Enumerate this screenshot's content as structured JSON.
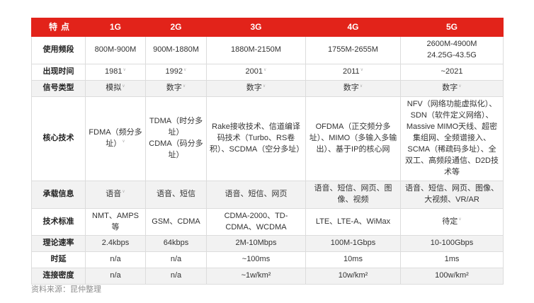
{
  "source_note": "资料来源：昆仲整理",
  "colors": {
    "accent": "#e2231a",
    "row_shade": "#f2f2f2",
    "border": "#dcdcdc",
    "header_text": "#ffffff"
  },
  "chart_data": {
    "type": "table",
    "title": "",
    "legend_position": "none",
    "grid": true,
    "columns": [
      "特点",
      "1G",
      "2G",
      "3G",
      "4G",
      "5G"
    ],
    "rows": [
      {
        "label": "使用频段",
        "cells": [
          "800M-900M",
          "900M-1880M",
          "1880M-2150M",
          "1755M-2655M",
          "2600M-4900M\n24.25G-43.5G"
        ],
        "shade": false,
        "marks": [
          false,
          false,
          false,
          false,
          false
        ]
      },
      {
        "label": "出现时间",
        "cells": [
          "1981",
          "1992",
          "2001",
          "2011",
          "~2021"
        ],
        "shade": false,
        "marks": [
          true,
          true,
          true,
          true,
          false
        ]
      },
      {
        "label": "信号类型",
        "cells": [
          "模拟",
          "数字",
          "数字",
          "数字",
          "数字"
        ],
        "shade": true,
        "marks": [
          true,
          true,
          true,
          true,
          true
        ]
      },
      {
        "label": "核心技术",
        "cells": [
          "FDMA（频分多址）",
          "TDMA（时分多址）\nCDMA（码分多址）",
          "Rake接收技术、信道编译码技术（Turbo、RS卷积）、SCDMA（空分多址）",
          "OFDMA（正交频分多址）、MIMO（多输入多输出）、基于IP的核心网",
          "NFV（网络功能虚拟化）、SDN（软件定义网络）、Massive MIMO天线、超密集组网、全频谱接入、SCMA（稀疏码多址）、全双工、高频段通信、D2D技术等"
        ],
        "shade": false,
        "marks": [
          true,
          false,
          false,
          false,
          false
        ]
      },
      {
        "label": "承载信息",
        "cells": [
          "语音",
          "语音、短信",
          "语音、短信、网页",
          "语音、短信、网页、图像、视频",
          "语音、短信、网页、图像、大视频、VR/AR"
        ],
        "shade": true,
        "marks": [
          true,
          false,
          false,
          false,
          false
        ]
      },
      {
        "label": "技术标准",
        "cells": [
          "NMT、AMPS等",
          "GSM、CDMA",
          "CDMA-2000、TD-CDMA、WCDMA",
          "LTE、LTE-A、WiMax",
          "待定"
        ],
        "shade": false,
        "marks": [
          false,
          false,
          false,
          false,
          true
        ]
      },
      {
        "label": "理论速率",
        "cells": [
          "2.4kbps",
          "64kbps",
          "2M-10Mbps",
          "100M-1Gbps",
          "10-100Gbps"
        ],
        "shade": true,
        "marks": [
          false,
          false,
          false,
          false,
          false
        ]
      },
      {
        "label": "时延",
        "cells": [
          "n/a",
          "n/a",
          "~100ms",
          "10ms",
          "1ms"
        ],
        "shade": false,
        "marks": [
          false,
          false,
          false,
          false,
          false
        ]
      },
      {
        "label": "连接密度",
        "cells": [
          "n/a",
          "n/a",
          "~1w/km²",
          "10w/km²",
          "100w/km²"
        ],
        "shade": true,
        "marks": [
          false,
          false,
          false,
          false,
          false
        ]
      }
    ]
  }
}
